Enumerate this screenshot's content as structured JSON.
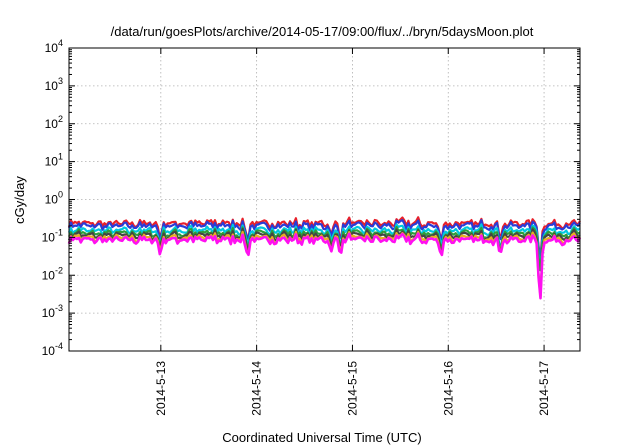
{
  "chart_data": {
    "type": "line",
    "title": "/data/run/goesPlots/archive/2014-05-17/09:00/flux/../bryn/5daysMoon.plot",
    "xlabel": "Coordinated Universal Time (UTC)",
    "ylabel": "cGy/day",
    "yscale": "log",
    "ylim": [
      0.0001,
      10000
    ],
    "xlim": [
      "2014-05-12T01:00",
      "2014-05-17T09:00"
    ],
    "grid": true,
    "legend": "none",
    "y_ticks": [
      {
        "base": "10",
        "exp": "-4"
      },
      {
        "base": "10",
        "exp": "-3"
      },
      {
        "base": "10",
        "exp": "-2"
      },
      {
        "base": "10",
        "exp": "-1"
      },
      {
        "base": "10",
        "exp": "0"
      },
      {
        "base": "10",
        "exp": "1"
      },
      {
        "base": "10",
        "exp": "2"
      },
      {
        "base": "10",
        "exp": "3"
      },
      {
        "base": "10",
        "exp": "4"
      }
    ],
    "x_ticks": [
      {
        "label": "2014-5-13",
        "date": "2014-05-13T00:00"
      },
      {
        "label": "2014-5-14",
        "date": "2014-05-14T00:00"
      },
      {
        "label": "2014-5-15",
        "date": "2014-05-15T00:00"
      },
      {
        "label": "2014-5-16",
        "date": "2014-05-16T00:00"
      },
      {
        "label": "2014-5-17",
        "date": "2014-05-17T00:00"
      }
    ],
    "dips": [
      {
        "date": "2014-05-12T23:50",
        "factor": 0.4
      },
      {
        "date": "2014-05-13T21:45",
        "factor": 0.35
      },
      {
        "date": "2014-05-14T18:45",
        "factor": 0.45
      },
      {
        "date": "2014-05-14T21:00",
        "factor": 0.5
      },
      {
        "date": "2014-05-15T22:10",
        "factor": 0.35
      },
      {
        "date": "2014-05-16T13:00",
        "factor": 0.4
      },
      {
        "date": "2014-05-16T23:00",
        "factor": 0.014
      }
    ],
    "series": [
      {
        "color": "#e8202a",
        "level": 0.23
      },
      {
        "color": "#2b3bd6",
        "level": 0.2
      },
      {
        "color": "#00c8e0",
        "level": 0.15
      },
      {
        "color": "#2e9e3a",
        "level": 0.125
      },
      {
        "color": "#444444",
        "level": 0.11
      },
      {
        "color": "#e8b020",
        "level": 0.095
      },
      {
        "color": "#ff10f0",
        "level": 0.085
      }
    ]
  }
}
